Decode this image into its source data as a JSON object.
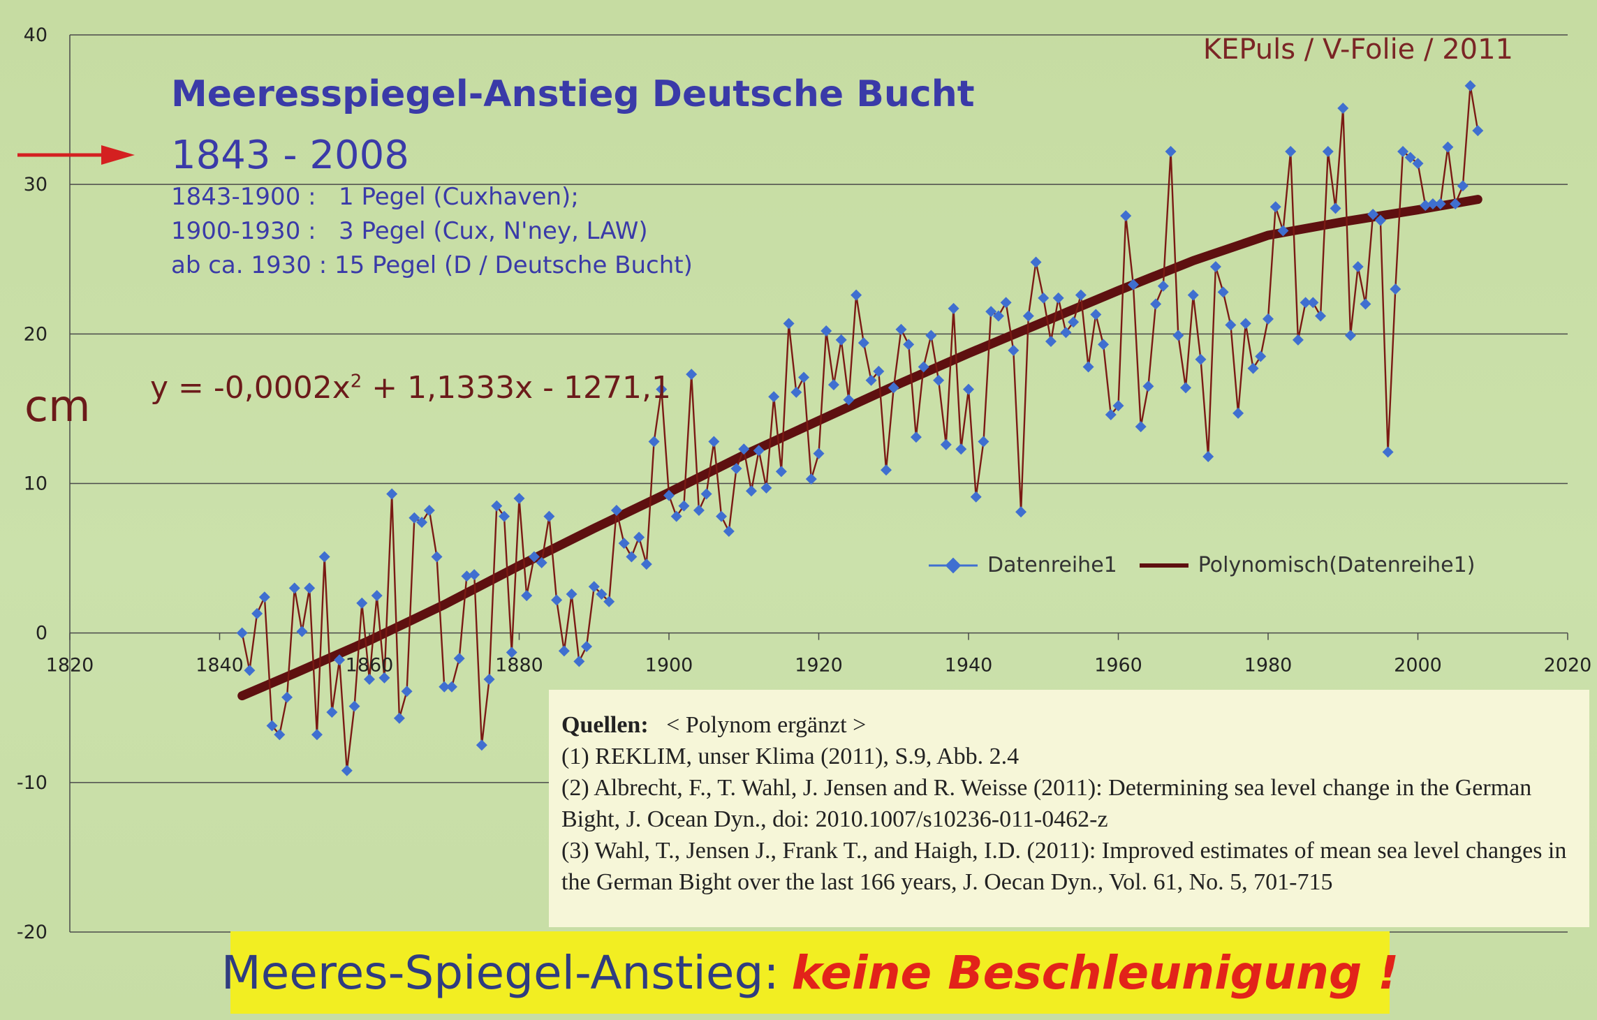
{
  "credit": "KEPuls / V-Folie / 2011",
  "header": {
    "title": "Meeresspiegel-Anstieg Deutsche Bucht",
    "years": "1843 - 2008",
    "lines": [
      "1843-1900 :   1 Pegel (Cuxhaven);",
      "1900-1930 :   3 Pegel (Cux, N'ney, LAW)",
      "ab ca. 1930 : 15 Pegel (D / Deutsche Bucht)"
    ]
  },
  "equation": {
    "left": "y = -0,0002x",
    "exp": "2",
    "right": " + 1,1333x - 1271,1"
  },
  "sources": {
    "heading": "Quellen:",
    "note": "< Polynom ergänzt >",
    "lines": [
      "(1) REKLIM, unser Klima (2011), S.9, Abb. 2.4",
      "(2) Albrecht, F., T. Wahl, J. Jensen and R. Weisse (2011): Determining sea level change in the German Bight, J. Ocean Dyn., doi: 2010.1007/s10236-011-0462-z",
      "(3) Wahl, T., Jensen J., Frank T., and Haigh, I.D. (2011): Improved estimates of mean sea level changes in the German Bight over the last 166 years, J. Oecan Dyn., Vol. 61, No. 5, 701-715"
    ]
  },
  "footer": {
    "left": "Meeres-Spiegel-Anstieg:",
    "right": "keine Beschleunigung !"
  },
  "colors": {
    "series_line": "#7a1a14",
    "marker": "#3f6fd0",
    "trend": "#5e1010",
    "grid": "#4a4a4a",
    "arrow": "#d42020"
  },
  "chart_data": {
    "type": "line",
    "title": "Meeresspiegel-Anstieg Deutsche Bucht",
    "ylabel": "cm",
    "xlim": [
      1820,
      2020
    ],
    "ylim": [
      -20,
      40
    ],
    "x_ticks": [
      1820,
      1840,
      1860,
      1880,
      1900,
      1920,
      1940,
      1960,
      1980,
      2000,
      2020
    ],
    "y_ticks": [
      -20,
      -10,
      0,
      10,
      20,
      30,
      40
    ],
    "grid": "horizontal",
    "legend_position": "center-right",
    "series": [
      {
        "name": "Datenreihe1",
        "x": [
          1843,
          1844,
          1845,
          1846,
          1847,
          1848,
          1849,
          1850,
          1851,
          1852,
          1853,
          1854,
          1855,
          1856,
          1857,
          1858,
          1859,
          1860,
          1861,
          1862,
          1863,
          1864,
          1865,
          1866,
          1867,
          1868,
          1869,
          1870,
          1871,
          1872,
          1873,
          1874,
          1875,
          1876,
          1877,
          1878,
          1879,
          1880,
          1881,
          1882,
          1883,
          1884,
          1885,
          1886,
          1887,
          1888,
          1889,
          1890,
          1891,
          1892,
          1893,
          1894,
          1895,
          1896,
          1897,
          1898,
          1899,
          1900,
          1901,
          1902,
          1903,
          1904,
          1905,
          1906,
          1907,
          1908,
          1909,
          1910,
          1911,
          1912,
          1913,
          1914,
          1915,
          1916,
          1917,
          1918,
          1919,
          1920,
          1921,
          1922,
          1923,
          1924,
          1925,
          1926,
          1927,
          1928,
          1929,
          1930,
          1931,
          1932,
          1933,
          1934,
          1935,
          1936,
          1937,
          1938,
          1939,
          1940,
          1941,
          1942,
          1943,
          1944,
          1945,
          1946,
          1947,
          1948,
          1949,
          1950,
          1951,
          1952,
          1953,
          1954,
          1955,
          1956,
          1957,
          1958,
          1959,
          1960,
          1961,
          1962,
          1963,
          1964,
          1965,
          1966,
          1967,
          1968,
          1969,
          1970,
          1971,
          1972,
          1973,
          1974,
          1975,
          1976,
          1977,
          1978,
          1979,
          1980,
          1981,
          1982,
          1983,
          1984,
          1985,
          1986,
          1987,
          1988,
          1989,
          1990,
          1991,
          1992,
          1993,
          1994,
          1995,
          1996,
          1997,
          1998,
          1999,
          2000,
          2001,
          2002,
          2003,
          2004,
          2005,
          2006,
          2007,
          2008
        ],
        "values": [
          0,
          -2.5,
          1.3,
          2.4,
          -6.2,
          -6.8,
          -4.3,
          3.0,
          0.1,
          3.0,
          -6.8,
          5.1,
          -5.3,
          -1.8,
          -9.2,
          -4.9,
          2.0,
          -3.1,
          2.5,
          -3.0,
          9.3,
          -5.7,
          -3.9,
          7.7,
          7.4,
          8.2,
          5.1,
          -3.6,
          -3.6,
          -1.7,
          3.8,
          3.9,
          -7.5,
          -3.1,
          8.5,
          7.8,
          -1.3,
          9.0,
          2.5,
          5.1,
          4.7,
          7.8,
          2.2,
          -1.2,
          2.6,
          -1.9,
          -0.9,
          3.1,
          2.6,
          2.1,
          8.2,
          6.0,
          5.1,
          6.4,
          4.6,
          12.8,
          16.3,
          9.2,
          7.8,
          8.5,
          17.3,
          8.2,
          9.3,
          12.8,
          7.8,
          6.8,
          11.0,
          12.3,
          9.5,
          12.2,
          9.7,
          15.8,
          10.8,
          20.7,
          16.1,
          17.1,
          10.3,
          12.0,
          20.2,
          16.6,
          19.6,
          15.6,
          22.6,
          19.4,
          16.9,
          17.5,
          10.9,
          16.4,
          20.3,
          19.3,
          13.1,
          17.8,
          19.9,
          16.9,
          12.6,
          21.7,
          12.3,
          16.3,
          9.1,
          12.8,
          21.5,
          21.2,
          22.1,
          18.9,
          8.1,
          21.2,
          24.8,
          22.4,
          19.5,
          22.4,
          20.1,
          20.8,
          22.6,
          17.8,
          21.3,
          19.3,
          14.6,
          15.2,
          27.9,
          23.3,
          13.8,
          16.5,
          22.0,
          23.2,
          32.2,
          19.9,
          16.4,
          22.6,
          18.3,
          11.8,
          24.5,
          22.8,
          20.6,
          14.7,
          20.7,
          17.7,
          18.5,
          21.0,
          28.5,
          26.9,
          32.2,
          19.6,
          22.1,
          22.1,
          21.2,
          32.2,
          28.4,
          35.1,
          19.9,
          24.5,
          22.0,
          28.0,
          27.6,
          12.1,
          23.0,
          32.2,
          31.8,
          31.4,
          28.6,
          28.7,
          28.7,
          32.5,
          28.7,
          29.9,
          36.6,
          33.6
        ]
      },
      {
        "name": "Polynomisch(Datenreihe1)",
        "equation": "y = -0,0002x² + 1,1333x - 1271,1",
        "x": [
          1843,
          1850,
          1860,
          1870,
          1880,
          1890,
          1900,
          1910,
          1920,
          1930,
          1940,
          1950,
          1960,
          1970,
          1980,
          1990,
          2000,
          2008
        ],
        "values": [
          -4.2,
          -2.7,
          -0.5,
          1.9,
          4.5,
          7.0,
          9.4,
          11.9,
          14.2,
          16.5,
          18.7,
          20.8,
          22.9,
          24.9,
          26.6,
          27.5,
          28.3,
          29.0
        ]
      }
    ]
  }
}
